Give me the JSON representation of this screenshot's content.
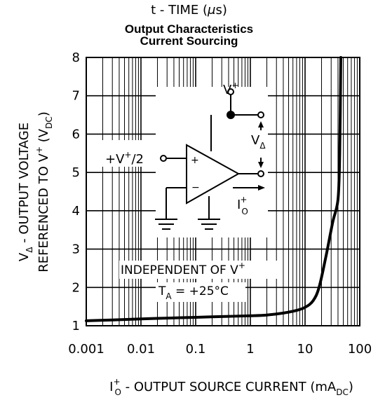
{
  "caption": {
    "prefix": "t - TIME (",
    "mu": "μ",
    "suffix": "s)"
  },
  "chart_data": {
    "type": "line",
    "title": "Output Characteristics",
    "subtitle": "Current Sourcing",
    "x_scale": "log",
    "xlim": [
      0.001,
      100
    ],
    "ylim": [
      1,
      8
    ],
    "grid": true,
    "x_ticks": [
      {
        "value": 0.001,
        "label": "0.001"
      },
      {
        "value": 0.01,
        "label": "0.01"
      },
      {
        "value": 0.1,
        "label": "0.1"
      },
      {
        "value": 1,
        "label": "1"
      },
      {
        "value": 10,
        "label": "10"
      },
      {
        "value": 100,
        "label": "100"
      }
    ],
    "y_ticks": [
      {
        "value": 1,
        "label": "1"
      },
      {
        "value": 2,
        "label": "2"
      },
      {
        "value": 3,
        "label": "3"
      },
      {
        "value": 4,
        "label": "4"
      },
      {
        "value": 5,
        "label": "5"
      },
      {
        "value": 6,
        "label": "6"
      },
      {
        "value": 7,
        "label": "7"
      },
      {
        "value": 8,
        "label": "8"
      }
    ],
    "xlabel": {
      "main": "I",
      "sup": "+",
      "sub": "O",
      "text": " - OUTPUT SOURCE CURRENT (mA",
      "unit_sub": "DC",
      "close": ")"
    },
    "ylabel": {
      "line1_main": "V",
      "line1_sub": "Δ",
      "line1_text": " - OUTPUT VOLTAGE",
      "line2_text": "REFERENCED TO V",
      "line2_sup": "+",
      "line2_mid": " (V",
      "line2_sub": "DC",
      "line2_close": ")"
    },
    "annotations": {
      "independent_text": "INDEPENDENT OF V",
      "independent_sup": "+",
      "ta_main": "T",
      "ta_sub": "A",
      "ta_value": " = +25°C"
    },
    "series": [
      {
        "points": [
          [
            0.001,
            1.13
          ],
          [
            0.003,
            1.15
          ],
          [
            0.01,
            1.18
          ],
          [
            0.03,
            1.2
          ],
          [
            0.1,
            1.22
          ],
          [
            0.3,
            1.24
          ],
          [
            1,
            1.26
          ],
          [
            2,
            1.28
          ],
          [
            4,
            1.33
          ],
          [
            7,
            1.4
          ],
          [
            10,
            1.48
          ],
          [
            14,
            1.65
          ],
          [
            18,
            2.0
          ],
          [
            24,
            2.8
          ],
          [
            32,
            3.7
          ],
          [
            40,
            4.3
          ],
          [
            43,
            5.5
          ],
          [
            45,
            8.0
          ]
        ]
      }
    ]
  },
  "inset": {
    "vplus_main": "V",
    "vplus_sup": "+",
    "input_main": "+V",
    "input_sup": "+",
    "input_tail": "/2",
    "plus_sign": "+",
    "minus_sign": "−",
    "vdelta_main": "V",
    "vdelta_sub": "Δ",
    "io_main": "I",
    "io_sup": "+",
    "io_sub": "O"
  }
}
